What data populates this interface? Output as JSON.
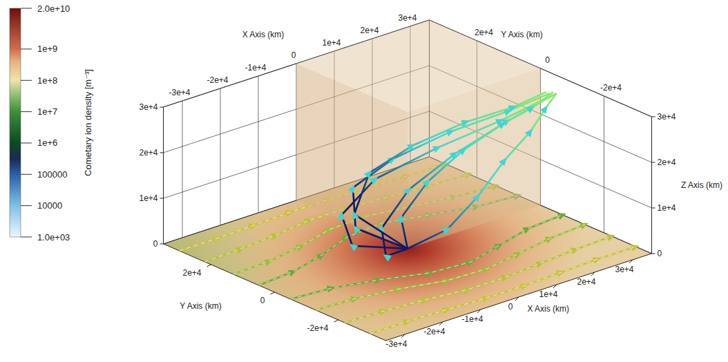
{
  "chart_data": {
    "type": "3d_streamlines",
    "colorbar": {
      "title": "Cometary ion density [m⁻³]",
      "range": [
        1000,
        20000000000
      ],
      "log": true,
      "ticks": [
        {
          "value": 20000000000,
          "label": "2.0e+10"
        },
        {
          "value": 1000000000,
          "label": "1e+9"
        },
        {
          "value": 100000000,
          "label": "1e+8"
        },
        {
          "value": 10000000,
          "label": "1e+7"
        },
        {
          "value": 1000000,
          "label": "1e+6"
        },
        100000,
        10000,
        {
          "value": 1000,
          "label": "1.0e+03"
        }
      ]
    },
    "xlabel": "X Axis (km)",
    "ylabel": "Y Axis (km)",
    "zlabel": "Z Axis (km)",
    "xlim": [
      -35000,
      35000
    ],
    "ylim": [
      -35000,
      35000
    ],
    "zlim": [
      0,
      30000
    ],
    "xticks": [
      {
        "value": -30000,
        "label": "-3e+4"
      },
      {
        "value": -20000,
        "label": "-2e+4"
      },
      {
        "value": -10000,
        "label": "-1e+4"
      },
      0,
      {
        "value": 10000,
        "label": "1e+4"
      },
      {
        "value": 20000,
        "label": "2e+4"
      },
      {
        "value": 30000,
        "label": "3e+4"
      }
    ],
    "yticks": [
      {
        "value": 20000,
        "label": "2e+4"
      },
      0,
      {
        "value": -20000,
        "label": "-2e+4"
      }
    ],
    "zticks": [
      0,
      {
        "value": 10000,
        "label": "1e+4"
      },
      {
        "value": 20000,
        "label": "2e+4"
      },
      {
        "value": 30000,
        "label": "3e+4"
      }
    ],
    "grid": true,
    "surface_lines": [
      {
        "color": "#c9c23a",
        "marker": "arrow",
        "x": [
          -35000,
          -25000,
          -15000,
          -5000,
          5000,
          15000,
          25000,
          35000
        ],
        "y": [
          30000,
          30000,
          30500,
          31000,
          31000,
          30500,
          30000,
          30000
        ],
        "z": [
          0,
          0,
          0,
          0,
          0,
          0,
          0,
          0
        ]
      },
      {
        "color": "#b8c23a",
        "marker": "arrow",
        "x": [
          -35000,
          -25000,
          -15000,
          -5000,
          5000,
          15000,
          25000,
          35000
        ],
        "y": [
          22000,
          22500,
          23500,
          25000,
          25000,
          24000,
          23000,
          22500
        ],
        "z": [
          0,
          0,
          0,
          0,
          0,
          0,
          0,
          0
        ]
      },
      {
        "color": "#9cbc3a",
        "marker": "arrow",
        "x": [
          -35000,
          -25000,
          -15000,
          -5000,
          5000,
          15000,
          25000,
          35000
        ],
        "y": [
          13000,
          13500,
          15500,
          18500,
          19000,
          17000,
          15000,
          14000
        ],
        "z": [
          0,
          0,
          0,
          0,
          0,
          0,
          0,
          0
        ]
      },
      {
        "color": "#6fa83a",
        "marker": "arrow",
        "x": [
          -35000,
          -25000,
          -15000,
          -5000,
          5000,
          15000,
          25000,
          35000
        ],
        "y": [
          5000,
          6000,
          9000,
          13000,
          14000,
          11000,
          8000,
          7000
        ],
        "z": [
          0,
          0,
          0,
          0,
          0,
          0,
          0,
          0
        ]
      },
      {
        "color": "#6fa83a",
        "marker": "arrow",
        "x": [
          -35000,
          -25000,
          -15000,
          -5000,
          5000,
          15000,
          25000,
          35000
        ],
        "y": [
          -5000,
          -6000,
          -9000,
          -13000,
          -14000,
          -11000,
          -8000,
          -7000
        ],
        "z": [
          0,
          0,
          0,
          0,
          0,
          0,
          0,
          0
        ]
      },
      {
        "color": "#9cbc3a",
        "marker": "arrow",
        "x": [
          -35000,
          -25000,
          -15000,
          -5000,
          5000,
          15000,
          25000,
          35000
        ],
        "y": [
          -13000,
          -13500,
          -15500,
          -18500,
          -19000,
          -17000,
          -15000,
          -14000
        ],
        "z": [
          0,
          0,
          0,
          0,
          0,
          0,
          0,
          0
        ]
      },
      {
        "color": "#b8c23a",
        "marker": "arrow",
        "x": [
          -35000,
          -25000,
          -15000,
          -5000,
          5000,
          15000,
          25000,
          35000
        ],
        "y": [
          -22000,
          -22500,
          -23500,
          -25000,
          -25000,
          -24000,
          -23000,
          -22500
        ],
        "z": [
          0,
          0,
          0,
          0,
          0,
          0,
          0,
          0
        ]
      },
      {
        "color": "#c9c23a",
        "marker": "arrow",
        "x": [
          -35000,
          -25000,
          -15000,
          -5000,
          5000,
          15000,
          25000,
          35000
        ],
        "y": [
          -30000,
          -30000,
          -30500,
          -31000,
          -31000,
          -30500,
          -30000,
          -30000
        ],
        "z": [
          0,
          0,
          0,
          0,
          0,
          0,
          0,
          0
        ]
      }
    ],
    "field_lines": [
      {
        "color": "#3fd6d0",
        "marker": "arrow",
        "x": [
          0,
          -12000,
          -14000,
          -6000,
          8000,
          22000,
          35000
        ],
        "y": [
          0,
          3000,
          4000,
          3000,
          0,
          -3000,
          -5000
        ],
        "z": [
          0,
          3000,
          10000,
          16000,
          20000,
          23000,
          26000
        ]
      },
      {
        "color": "#3fd6d0",
        "marker": "arrow",
        "x": [
          0,
          -9000,
          -11000,
          -3000,
          10000,
          23000,
          35000
        ],
        "y": [
          0,
          -4000,
          -5000,
          -4000,
          -3000,
          -4000,
          -5000
        ],
        "z": [
          0,
          2000,
          9000,
          15000,
          19000,
          23000,
          26000
        ]
      },
      {
        "color": "#3fd6d0",
        "marker": "arrow",
        "x": [
          0,
          -7000,
          -6000,
          2000,
          14000,
          25000,
          34000
        ],
        "y": [
          0,
          8000,
          10000,
          7000,
          3000,
          -2000,
          -4000
        ],
        "z": [
          0,
          4000,
          12000,
          17000,
          21000,
          24000,
          26000
        ]
      },
      {
        "color": "#3fd6d0",
        "marker": "arrow",
        "x": [
          0,
          -4000,
          0,
          8000,
          18000,
          27000,
          34000
        ],
        "y": [
          0,
          12000,
          12000,
          8000,
          3000,
          -1000,
          -3000
        ],
        "z": [
          0,
          5000,
          13000,
          18000,
          22000,
          24000,
          26000
        ]
      },
      {
        "color": "#3fd6d0",
        "marker": "arrow",
        "x": [
          0,
          5000,
          12000,
          19000,
          26000,
          31000,
          35000
        ],
        "y": [
          0,
          8000,
          8000,
          5000,
          1000,
          -2000,
          -4000
        ],
        "z": [
          0,
          3000,
          9000,
          15000,
          20000,
          23000,
          26000
        ]
      },
      {
        "color": "#3fd6d0",
        "marker": "arrow",
        "x": [
          0,
          8000,
          16000,
          23000,
          29000,
          33000,
          35000
        ],
        "y": [
          0,
          -3000,
          -3000,
          -3000,
          -4000,
          -4000,
          -5000
        ],
        "z": [
          0,
          3000,
          8000,
          14000,
          19000,
          23000,
          26000
        ]
      }
    ]
  }
}
